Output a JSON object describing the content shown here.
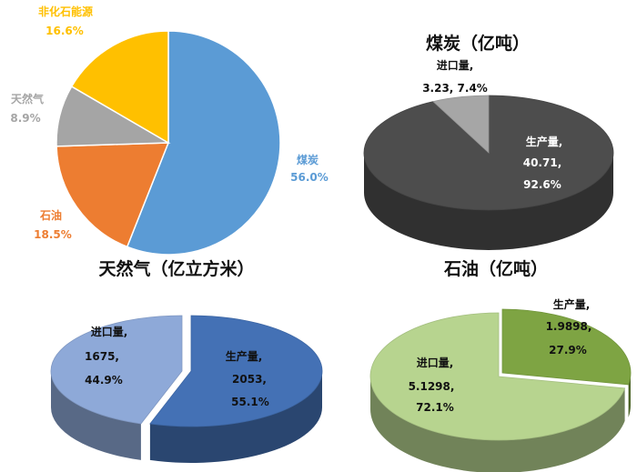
{
  "chart_data": [
    {
      "type": "pie",
      "title": "",
      "slices": [
        {
          "label": "煤炭",
          "value": 56.0,
          "display": "56.0%",
          "color": "#5B9BD5"
        },
        {
          "label": "石油",
          "value": 18.5,
          "display": "18.5%",
          "color": "#ED7D31"
        },
        {
          "label": "天然气",
          "value": 8.9,
          "display": "8.9%",
          "color": "#A5A5A5"
        },
        {
          "label": "非化石能源",
          "value": 16.6,
          "display": "16.6%",
          "color": "#FFC000"
        }
      ]
    },
    {
      "type": "pie",
      "title": "煤炭（亿吨）",
      "slices": [
        {
          "label": "生产量,",
          "value": 40.71,
          "value_text": "40.71,",
          "pct": "92.6%",
          "color": "#4D4D4D"
        },
        {
          "label": "进口量,",
          "value": 3.23,
          "value_text": "3.23, 7.4%",
          "pct": "",
          "color": "#A6A6A6"
        }
      ]
    },
    {
      "type": "pie",
      "title": "天然气（亿立方米）",
      "slices": [
        {
          "label": "生产量,",
          "value": 2053,
          "value_text": "2053,",
          "pct": "55.1%",
          "color": "#4471B5"
        },
        {
          "label": "进口量,",
          "value": 1675,
          "value_text": "1675,",
          "pct": "44.9%",
          "color": "#8EA9D8"
        }
      ]
    },
    {
      "type": "pie",
      "title": "石油（亿吨）",
      "slices": [
        {
          "label": "生产量,",
          "value": 1.9898,
          "value_text": "1.9898,",
          "pct": "27.9%",
          "color": "#7EA443"
        },
        {
          "label": "进口量,",
          "value": 5.1298,
          "value_text": "5.1298,",
          "pct": "72.1%",
          "color": "#B7D48F"
        }
      ]
    }
  ]
}
